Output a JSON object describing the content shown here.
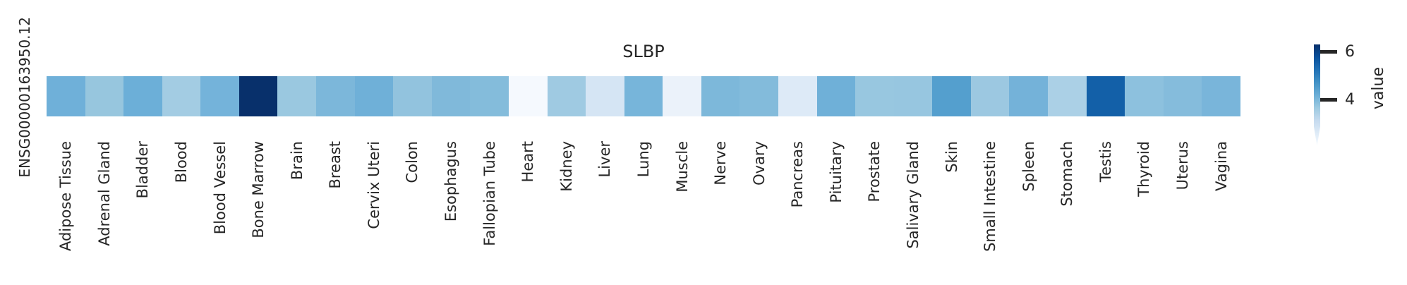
{
  "figure": {
    "title": "SLBP",
    "gene_label": "ENSG00000163950.12"
  },
  "colorbar": {
    "label": "value",
    "tick_labels": [
      "4",
      "6"
    ]
  },
  "chart_data": {
    "type": "heatmap",
    "title": "SLBP",
    "row_label": "ENSG00000163950.12",
    "colormap": "Blues",
    "colorbar_label": "value",
    "colorbar_ticks": [
      4,
      6
    ],
    "vmin": 2.1,
    "vmax": 6.3,
    "categories": [
      "Adipose Tissue",
      "Adrenal Gland",
      "Bladder",
      "Blood",
      "Blood Vessel",
      "Bone Marrow",
      "Brain",
      "Breast",
      "Cervix Uteri",
      "Colon",
      "Esophagus",
      "Fallopian Tube",
      "Heart",
      "Kidney",
      "Liver",
      "Lung",
      "Muscle",
      "Nerve",
      "Ovary",
      "Pancreas",
      "Pituitary",
      "Prostate",
      "Salivary Gland",
      "Skin",
      "Small Intestine",
      "Spleen",
      "Stomach",
      "Testis",
      "Thyroid",
      "Uterus",
      "Vagina"
    ],
    "values": [
      4.3,
      3.8,
      4.3,
      3.7,
      4.2,
      6.3,
      3.8,
      4.1,
      4.2,
      3.9,
      4.0,
      4.0,
      2.3,
      3.8,
      2.9,
      4.2,
      2.5,
      4.1,
      4.0,
      2.7,
      4.2,
      3.8,
      3.8,
      4.6,
      3.8,
      4.2,
      3.6,
      5.6,
      3.9,
      4.0,
      4.1
    ],
    "cell_colors": [
      "#6fb0d9",
      "#97c6de",
      "#6cafd8",
      "#a3cce3",
      "#74b3da",
      "#08306b",
      "#9ac8e0",
      "#7cb7da",
      "#6fb0d8",
      "#92c3de",
      "#80b9da",
      "#84bcdb",
      "#f5f9fe",
      "#9fcae2",
      "#d5e5f4",
      "#77b5da",
      "#ebf2fa",
      "#7db8da",
      "#83bbdb",
      "#ddeaf7",
      "#6fb0d8",
      "#98c7e0",
      "#97c6e0",
      "#549fce",
      "#9cc8e1",
      "#74b2d9",
      "#abd0e6",
      "#1360a8",
      "#8dc1de",
      "#85bcdc",
      "#79b5da"
    ]
  }
}
